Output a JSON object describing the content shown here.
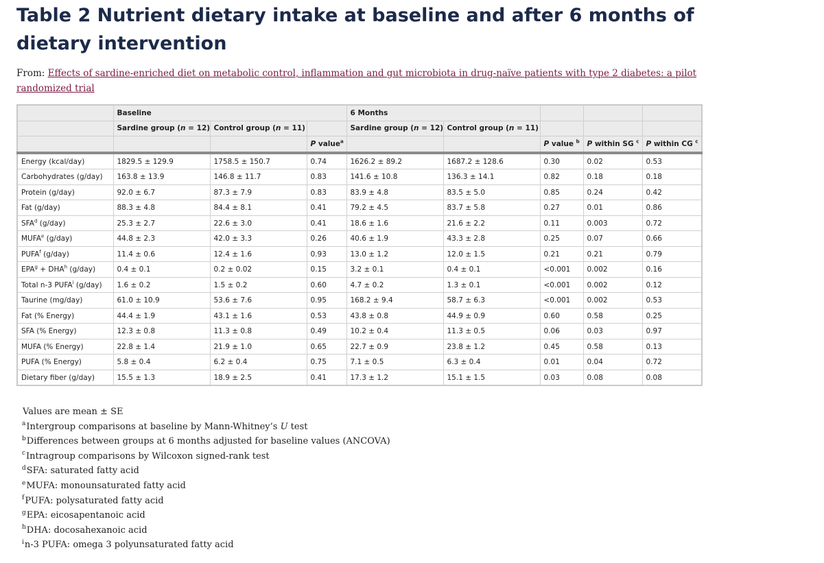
{
  "title": "Table 2 Nutrient dietary intake at baseline and after 6 months of dietary intervention",
  "from_label": "From:",
  "from_link": "Effects of sardine-enriched diet on metabolic control, inflammation and gut microbiota in drug-naïve patients with type 2 diabetes: a pilot randomized trial",
  "header": {
    "baseline": "Baseline",
    "six_months": "6 Months",
    "sardine_group": "Sardine group (",
    "control_group": "Control group (",
    "n_italic": "n",
    "n12": " = 12)",
    "n11": " = 11)",
    "p_italic": "P",
    "p_value_a": " value",
    "sup_a": "a",
    "p_value_b": " value ",
    "sup_b": "b",
    "p_within_sg": " within SG ",
    "p_within_cg": " within CG ",
    "sup_c": "c"
  },
  "rows": [
    {
      "label": "Energy (kcal/day)",
      "b_sg": "1829.5 ± 129.9",
      "b_cg": "1758.5 ± 150.7",
      "p_a": "0.74",
      "m_sg": "1626.2 ± 89.2",
      "m_cg": "1687.2 ± 128.6",
      "p_b": "0.30",
      "p_sg": "0.02",
      "p_cg": "0.53"
    },
    {
      "label": "Carbohydrates (g/day)",
      "b_sg": "163.8 ± 13.9",
      "b_cg": "146.8 ± 11.7",
      "p_a": "0.83",
      "m_sg": "141.6 ± 10.8",
      "m_cg": "136.3 ± 14.1",
      "p_b": "0.82",
      "p_sg": "0.18",
      "p_cg": "0.18"
    },
    {
      "label": "Protein (g/day)",
      "b_sg": "92.0 ± 6.7",
      "b_cg": "87.3 ± 7.9",
      "p_a": "0.83",
      "m_sg": "83.9 ± 4.8",
      "m_cg": "83.5 ± 5.0",
      "p_b": "0.85",
      "p_sg": "0.24",
      "p_cg": "0.42"
    },
    {
      "label": "Fat (g/day)",
      "b_sg": "88.3 ± 4.8",
      "b_cg": "84.4 ± 8.1",
      "p_a": "0.41",
      "m_sg": "79.2 ± 4.5",
      "m_cg": "83.7 ± 5.8",
      "p_b": "0.27",
      "p_sg": "0.01",
      "p_cg": "0.86"
    },
    {
      "label_pre": "SFA",
      "label_sup": "d",
      "label_post": " (g/day)",
      "b_sg": "25.3 ± 2.7",
      "b_cg": "22.6 ± 3.0",
      "p_a": "0.41",
      "m_sg": "18.6 ± 1.6",
      "m_cg": "21.6 ± 2.2",
      "p_b": "0.11",
      "p_sg": "0.003",
      "p_cg": "0.72"
    },
    {
      "label_pre": "MUFA",
      "label_sup": "e",
      "label_post": " (g/day)",
      "b_sg": "44.8 ± 2.3",
      "b_cg": "42.0 ± 3.3",
      "p_a": "0.26",
      "m_sg": "40.6 ± 1.9",
      "m_cg": "43.3 ± 2.8",
      "p_b": "0.25",
      "p_sg": "0.07",
      "p_cg": "0.66"
    },
    {
      "label_pre": "PUFA",
      "label_sup": "f",
      "label_post": " (g/day)",
      "b_sg": "11.4 ± 0.6",
      "b_cg": "12.4 ± 1.6",
      "p_a": "0.93",
      "m_sg": "13.0 ± 1.2",
      "m_cg": "12.0 ± 1.5",
      "p_b": "0.21",
      "p_sg": "0.21",
      "p_cg": "0.79"
    },
    {
      "label_pre": "EPA",
      "label_sup": "g",
      "label_mid": " + DHA",
      "label_sup2": "h",
      "label_post": " (g/day)",
      "b_sg": "0.4 ± 0.1",
      "b_cg": "0.2 ± 0.02",
      "p_a": "0.15",
      "m_sg": "3.2 ± 0.1",
      "m_cg": "0.4 ± 0.1",
      "p_b": "<0.001",
      "p_sg": "0.002",
      "p_cg": "0.16"
    },
    {
      "label_pre": "Total n-3 PUFA",
      "label_sup": "i",
      "label_post": " (g/day)",
      "b_sg": "1.6 ± 0.2",
      "b_cg": "1.5 ± 0.2",
      "p_a": "0.60",
      "m_sg": "4.7 ± 0.2",
      "m_cg": "1.3 ± 0.1",
      "p_b": "<0.001",
      "p_sg": "0.002",
      "p_cg": "0.12"
    },
    {
      "label": "Taurine (mg/day)",
      "b_sg": "61.0 ± 10.9",
      "b_cg": "53.6 ± 7.6",
      "p_a": "0.95",
      "m_sg": "168.2 ± 9.4",
      "m_cg": "58.7 ± 6.3",
      "p_b": "<0.001",
      "p_sg": "0.002",
      "p_cg": "0.53"
    },
    {
      "label": "Fat (% Energy)",
      "b_sg": "44.4 ± 1.9",
      "b_cg": "43.1 ± 1.6",
      "p_a": "0.53",
      "m_sg": "43.8 ± 0.8",
      "m_cg": "44.9 ± 0.9",
      "p_b": "0.60",
      "p_sg": "0.58",
      "p_cg": "0.25"
    },
    {
      "label": "SFA (% Energy)",
      "b_sg": "12.3 ± 0.8",
      "b_cg": "11.3 ± 0.8",
      "p_a": "0.49",
      "m_sg": "10.2 ± 0.4",
      "m_cg": "11.3 ± 0.5",
      "p_b": "0.06",
      "p_sg": "0.03",
      "p_cg": "0.97"
    },
    {
      "label": "MUFA (% Energy)",
      "b_sg": "22.8 ± 1.4",
      "b_cg": "21.9 ± 1.0",
      "p_a": "0.65",
      "m_sg": "22.7 ± 0.9",
      "m_cg": "23.8 ± 1.2",
      "p_b": "0.45",
      "p_sg": "0.58",
      "p_cg": "0.13"
    },
    {
      "label": "PUFA (% Energy)",
      "b_sg": "5.8 ± 0.4",
      "b_cg": "6.2 ± 0.4",
      "p_a": "0.75",
      "m_sg": "7.1 ± 0.5",
      "m_cg": "6.3 ± 0.4",
      "p_b": "0.01",
      "p_sg": "0.04",
      "p_cg": "0.72"
    },
    {
      "label": "Dietary fiber (g/day)",
      "b_sg": "15.5 ± 1.3",
      "b_cg": "18.9 ± 2.5",
      "p_a": "0.41",
      "m_sg": "17.3 ± 1.2",
      "m_cg": "15.1 ± 1.5",
      "p_b": "0.03",
      "p_sg": "0.08",
      "p_cg": "0.08"
    }
  ],
  "footnotes": [
    {
      "mark": "",
      "pre": "Values are mean ± SE",
      "ital": "",
      "post": ""
    },
    {
      "mark": "a",
      "pre": "Intergroup comparisons at baseline by Mann-Whitney’s ",
      "ital": "U",
      "post": " test"
    },
    {
      "mark": "b",
      "pre": "Differences between groups at 6 months adjusted for baseline values (ANCOVA)",
      "ital": "",
      "post": ""
    },
    {
      "mark": "c",
      "pre": "Intragroup comparisons by Wilcoxon signed-rank test",
      "ital": "",
      "post": ""
    },
    {
      "mark": "d",
      "pre": "SFA: saturated fatty acid",
      "ital": "",
      "post": ""
    },
    {
      "mark": "e",
      "pre": "MUFA: monounsaturated fatty acid",
      "ital": "",
      "post": ""
    },
    {
      "mark": "f",
      "pre": "PUFA: polysaturated fatty acid",
      "ital": "",
      "post": ""
    },
    {
      "mark": "g",
      "pre": "EPA: eicosapentanoic acid",
      "ital": "",
      "post": ""
    },
    {
      "mark": "h",
      "pre": "DHA: docosahexanoic acid",
      "ital": "",
      "post": ""
    },
    {
      "mark": "i",
      "pre": "n-3 PUFA: omega 3 polyunsaturated fatty acid",
      "ital": "",
      "post": ""
    }
  ]
}
